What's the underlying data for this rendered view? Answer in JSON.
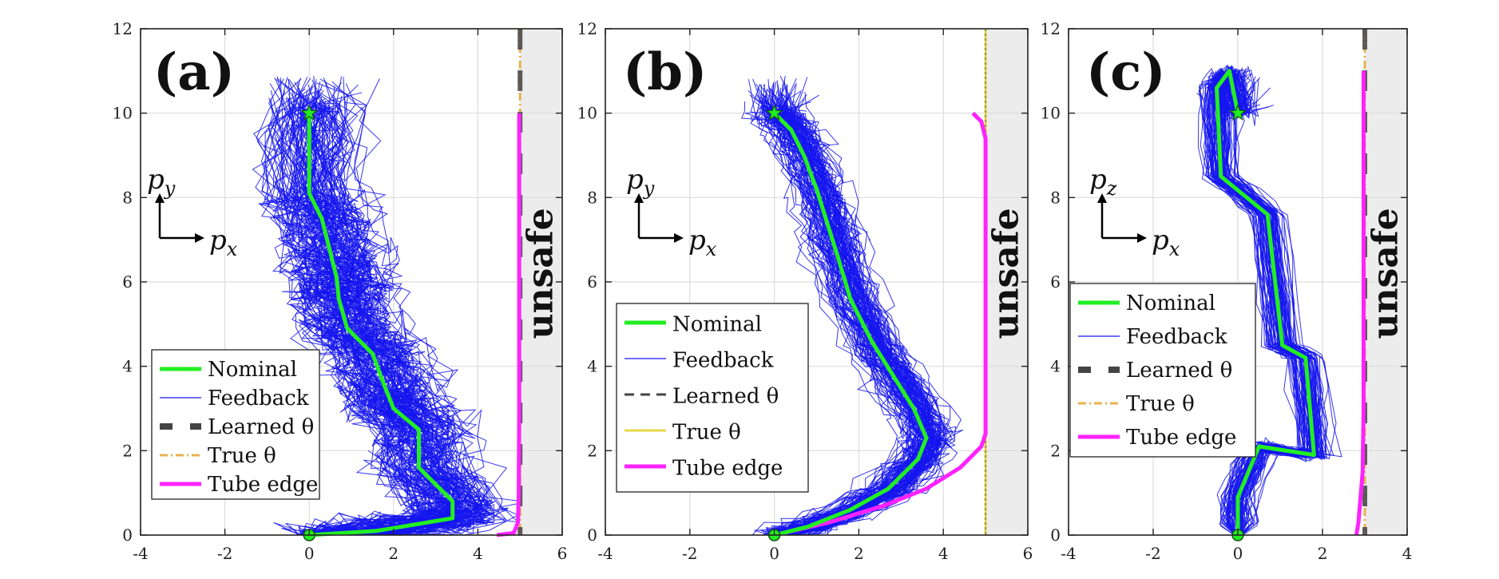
{
  "colors": {
    "nominal": "#22ee22",
    "feedback": "#1515ee",
    "learned": "#444444",
    "true_yellow": "#e8d84a",
    "true_orange": "#e8b050",
    "tube": "#ff22ff",
    "unsafe_fill": "#ececec",
    "grid": "#dcdcdc"
  },
  "chart_data": [
    {
      "panel": "(a)",
      "type": "line",
      "xlim": [
        -4,
        6
      ],
      "ylim": [
        0,
        12
      ],
      "xticks": [
        "-4",
        "-2",
        "0",
        "2",
        "4",
        "6"
      ],
      "yticks": [
        "0",
        "2",
        "4",
        "6",
        "8",
        "10",
        "12"
      ],
      "grid": true,
      "unsafe_label": "unsafe",
      "unsafe_region": [
        5,
        6
      ],
      "axis_labels": {
        "up": "p",
        "up_sub": "y",
        "right": "p",
        "right_sub": "x"
      },
      "start": [
        0,
        0
      ],
      "goal": [
        0,
        10
      ],
      "nominal": [
        [
          0,
          0
        ],
        [
          1.6,
          0.1
        ],
        [
          3.4,
          0.4
        ],
        [
          3.4,
          0.8
        ],
        [
          2.6,
          1.6
        ],
        [
          2.6,
          2.5
        ],
        [
          2.0,
          3.0
        ],
        [
          1.8,
          3.5
        ],
        [
          1.5,
          4.3
        ],
        [
          0.9,
          4.9
        ],
        [
          0.7,
          5.6
        ],
        [
          0.65,
          6.1
        ],
        [
          0.5,
          6.7
        ],
        [
          0.3,
          7.5
        ],
        [
          0,
          8.1
        ],
        [
          0,
          10
        ]
      ],
      "feedback_spread": 0.55,
      "feedback_count": 120,
      "true_theta_x": 5,
      "learned_theta_x": 5,
      "tube_edge": [
        [
          4.45,
          0
        ],
        [
          4.85,
          0.05
        ],
        [
          4.95,
          0.3
        ],
        [
          4.97,
          1
        ],
        [
          4.98,
          3
        ],
        [
          4.98,
          6
        ],
        [
          4.98,
          9
        ],
        [
          4.98,
          10
        ]
      ],
      "legend": {
        "items": [
          {
            "label": "Nominal",
            "style": "nominal"
          },
          {
            "label": "Feedback",
            "style": "feedback"
          },
          {
            "label": "Learned θ",
            "style": "learned"
          },
          {
            "label": "True θ",
            "style": "true_orange"
          },
          {
            "label": "Tube edge",
            "style": "tube"
          }
        ]
      }
    },
    {
      "panel": "(b)",
      "type": "line",
      "xlim": [
        -4,
        6
      ],
      "ylim": [
        0,
        12
      ],
      "xticks": [
        "-4",
        "-2",
        "0",
        "2",
        "4",
        "6"
      ],
      "yticks": [
        "0",
        "2",
        "4",
        "6",
        "8",
        "10",
        "12"
      ],
      "grid": true,
      "unsafe_label": "unsafe",
      "unsafe_region": [
        5,
        6
      ],
      "axis_labels": {
        "up": "p",
        "up_sub": "y",
        "right": "p",
        "right_sub": "x"
      },
      "start": [
        0,
        0
      ],
      "goal": [
        0,
        10
      ],
      "nominal": [
        [
          0,
          0
        ],
        [
          0.8,
          0.2
        ],
        [
          1.8,
          0.6
        ],
        [
          2.7,
          1.1
        ],
        [
          3.4,
          1.8
        ],
        [
          3.6,
          2.3
        ],
        [
          3.3,
          3.0
        ],
        [
          2.8,
          3.8
        ],
        [
          2.3,
          4.6
        ],
        [
          1.8,
          5.6
        ],
        [
          1.5,
          6.6
        ],
        [
          1.25,
          7.4
        ],
        [
          1.0,
          8.2
        ],
        [
          0.7,
          9.0
        ],
        [
          0.4,
          9.6
        ],
        [
          0,
          10
        ]
      ],
      "feedback_spread": 0.3,
      "feedback_count": 110,
      "true_theta_x": 5,
      "learned_theta_x": 5,
      "tube_edge": [
        [
          0,
          0
        ],
        [
          1.3,
          0.3
        ],
        [
          2.6,
          0.7
        ],
        [
          3.6,
          1.1
        ],
        [
          4.4,
          1.6
        ],
        [
          4.9,
          2.1
        ],
        [
          5.0,
          2.4
        ],
        [
          5.0,
          6
        ],
        [
          5.0,
          9.4
        ],
        [
          4.9,
          9.8
        ],
        [
          4.7,
          10
        ]
      ],
      "legend": {
        "items": [
          {
            "label": "Nominal",
            "style": "nominal"
          },
          {
            "label": "Feedback",
            "style": "feedback"
          },
          {
            "label": "Learned θ",
            "style": "learned_dashed"
          },
          {
            "label": "True θ",
            "style": "true_yellow"
          },
          {
            "label": "Tube edge",
            "style": "tube"
          }
        ]
      }
    },
    {
      "panel": "(c)",
      "type": "line",
      "xlim": [
        -4,
        4
      ],
      "ylim": [
        0,
        12
      ],
      "xticks": [
        "-4",
        "-2",
        "0",
        "2",
        "4"
      ],
      "yticks": [
        "0",
        "2",
        "4",
        "6",
        "8",
        "10",
        "12"
      ],
      "grid": true,
      "unsafe_label": "unsafe",
      "unsafe_region": [
        3,
        4
      ],
      "axis_labels": {
        "up": "p",
        "up_sub": "z",
        "right": "p",
        "right_sub": "x"
      },
      "start": [
        0,
        0
      ],
      "goal": [
        0,
        10
      ],
      "nominal": [
        [
          0,
          0
        ],
        [
          0,
          0.9
        ],
        [
          0.5,
          2.1
        ],
        [
          1.8,
          1.9
        ],
        [
          1.6,
          4.2
        ],
        [
          1.05,
          4.5
        ],
        [
          0.7,
          7.6
        ],
        [
          -0.4,
          8.5
        ],
        [
          -0.5,
          10.6
        ],
        [
          -0.2,
          11.0
        ],
        [
          0,
          10
        ]
      ],
      "feedback_spread": 0.18,
      "feedback_count": 90,
      "true_theta_x": 3,
      "learned_theta_x": 3,
      "tube_edge": [
        [
          2.8,
          0
        ],
        [
          2.85,
          0.3
        ],
        [
          2.95,
          1.5
        ],
        [
          2.97,
          3
        ],
        [
          2.97,
          6
        ],
        [
          2.97,
          9
        ],
        [
          2.97,
          11.0
        ]
      ],
      "legend": {
        "items": [
          {
            "label": "Nominal",
            "style": "nominal"
          },
          {
            "label": "Feedback",
            "style": "feedback"
          },
          {
            "label": "Learned θ",
            "style": "learned"
          },
          {
            "label": "True θ",
            "style": "true_orange"
          },
          {
            "label": "Tube edge",
            "style": "tube"
          }
        ]
      }
    }
  ]
}
